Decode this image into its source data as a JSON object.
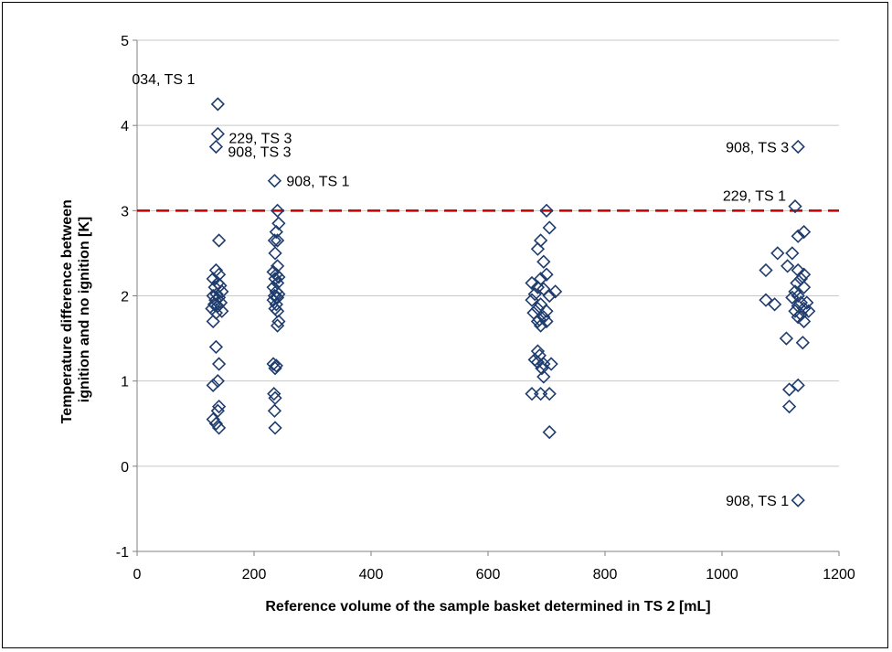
{
  "chart_data": {
    "type": "scatter",
    "title": "",
    "xlabel": "Reference volume of the sample basket determined in TS 2 [mL]",
    "ylabel_lines": [
      "Temperature difference between",
      "ignition and no ignition [K]"
    ],
    "xlim": [
      0,
      1200
    ],
    "ylim": [
      -1,
      5
    ],
    "x_ticks": [
      "0",
      "200",
      "400",
      "600",
      "800",
      "1000",
      "1200"
    ],
    "y_ticks": [
      "-1",
      "0",
      "1",
      "2",
      "3",
      "4",
      "5"
    ],
    "grid": "horizontal",
    "marker": "open-diamond",
    "marker_color": "#1f3c6e",
    "threshold": {
      "y": 3,
      "color": "#c00000",
      "style": "dashed"
    },
    "annotations": [
      {
        "text": "034, TS 1",
        "x": 138,
        "y": 4.25
      },
      {
        "text": "229, TS 3",
        "x": 138,
        "y": 3.9
      },
      {
        "text": "908, TS 3",
        "x": 135,
        "y": 3.75
      },
      {
        "text": "908, TS 1",
        "x": 235,
        "y": 3.35
      },
      {
        "text": "908, TS 3",
        "x": 1130,
        "y": 3.75
      },
      {
        "text": "229, TS 1",
        "x": 1125,
        "y": 3.05
      },
      {
        "text": "908, TS 1",
        "x": 1130,
        "y": -0.4
      }
    ],
    "points": [
      [
        138,
        4.25
      ],
      [
        138,
        3.9
      ],
      [
        135,
        3.75
      ],
      [
        140,
        2.65
      ],
      [
        135,
        2.3
      ],
      [
        140,
        2.25
      ],
      [
        130,
        2.2
      ],
      [
        138,
        2.15
      ],
      [
        142,
        2.12
      ],
      [
        133,
        2.1
      ],
      [
        145,
        2.05
      ],
      [
        136,
        2.02
      ],
      [
        130,
        2.0
      ],
      [
        140,
        1.98
      ],
      [
        134,
        1.95
      ],
      [
        143,
        1.92
      ],
      [
        132,
        1.9
      ],
      [
        138,
        1.88
      ],
      [
        128,
        1.85
      ],
      [
        145,
        1.82
      ],
      [
        135,
        1.8
      ],
      [
        130,
        1.7
      ],
      [
        135,
        1.4
      ],
      [
        140,
        1.2
      ],
      [
        138,
        1.0
      ],
      [
        130,
        0.95
      ],
      [
        140,
        0.7
      ],
      [
        138,
        0.65
      ],
      [
        130,
        0.55
      ],
      [
        135,
        0.5
      ],
      [
        140,
        0.45
      ],
      [
        235,
        3.35
      ],
      [
        240,
        3.0
      ],
      [
        242,
        2.85
      ],
      [
        238,
        2.75
      ],
      [
        240,
        2.65
      ],
      [
        235,
        2.65
      ],
      [
        236,
        2.5
      ],
      [
        240,
        2.35
      ],
      [
        233,
        2.28
      ],
      [
        238,
        2.25
      ],
      [
        242,
        2.22
      ],
      [
        236,
        2.2
      ],
      [
        240,
        2.15
      ],
      [
        233,
        2.1
      ],
      [
        238,
        2.05
      ],
      [
        242,
        2.02
      ],
      [
        235,
        2.0
      ],
      [
        240,
        1.98
      ],
      [
        233,
        1.95
      ],
      [
        238,
        1.9
      ],
      [
        236,
        1.85
      ],
      [
        240,
        1.82
      ],
      [
        242,
        1.7
      ],
      [
        240,
        1.65
      ],
      [
        233,
        1.2
      ],
      [
        238,
        1.18
      ],
      [
        236,
        1.15
      ],
      [
        234,
        0.85
      ],
      [
        236,
        0.8
      ],
      [
        235,
        0.65
      ],
      [
        236,
        0.45
      ],
      [
        700,
        3.0
      ],
      [
        705,
        2.8
      ],
      [
        690,
        2.65
      ],
      [
        685,
        2.55
      ],
      [
        695,
        2.4
      ],
      [
        700,
        2.25
      ],
      [
        690,
        2.2
      ],
      [
        675,
        2.15
      ],
      [
        685,
        2.1
      ],
      [
        695,
        2.08
      ],
      [
        715,
        2.05
      ],
      [
        680,
        2.02
      ],
      [
        705,
        2.0
      ],
      [
        675,
        1.95
      ],
      [
        690,
        1.9
      ],
      [
        685,
        1.85
      ],
      [
        700,
        1.82
      ],
      [
        678,
        1.8
      ],
      [
        695,
        1.75
      ],
      [
        688,
        1.72
      ],
      [
        685,
        1.7
      ],
      [
        700,
        1.7
      ],
      [
        690,
        1.65
      ],
      [
        685,
        1.35
      ],
      [
        688,
        1.3
      ],
      [
        680,
        1.25
      ],
      [
        685,
        1.22
      ],
      [
        695,
        1.2
      ],
      [
        708,
        1.2
      ],
      [
        692,
        1.15
      ],
      [
        695,
        1.05
      ],
      [
        675,
        0.85
      ],
      [
        690,
        0.85
      ],
      [
        705,
        0.85
      ],
      [
        705,
        0.4
      ],
      [
        1130,
        3.75
      ],
      [
        1125,
        3.05
      ],
      [
        1140,
        2.75
      ],
      [
        1130,
        2.7
      ],
      [
        1095,
        2.5
      ],
      [
        1120,
        2.5
      ],
      [
        1075,
        2.3
      ],
      [
        1112,
        2.35
      ],
      [
        1130,
        2.3
      ],
      [
        1140,
        2.25
      ],
      [
        1135,
        2.2
      ],
      [
        1128,
        2.15
      ],
      [
        1140,
        2.1
      ],
      [
        1125,
        2.05
      ],
      [
        1130,
        2.0
      ],
      [
        1120,
        1.98
      ],
      [
        1075,
        1.95
      ],
      [
        1135,
        1.92
      ],
      [
        1145,
        1.92
      ],
      [
        1090,
        1.9
      ],
      [
        1130,
        1.88
      ],
      [
        1140,
        1.85
      ],
      [
        1148,
        1.82
      ],
      [
        1125,
        1.82
      ],
      [
        1135,
        1.78
      ],
      [
        1130,
        1.75
      ],
      [
        1140,
        1.7
      ],
      [
        1110,
        1.5
      ],
      [
        1138,
        1.45
      ],
      [
        1130,
        0.95
      ],
      [
        1115,
        0.9
      ],
      [
        1115,
        0.7
      ],
      [
        1130,
        -0.4
      ]
    ]
  }
}
